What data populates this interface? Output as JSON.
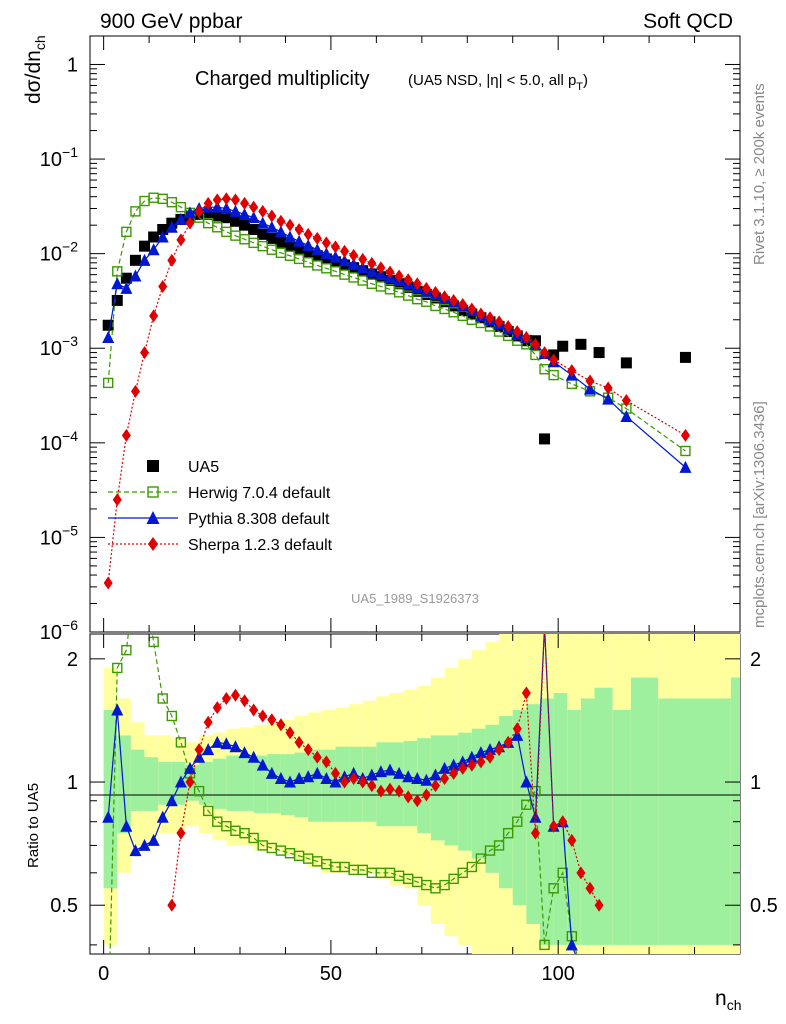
{
  "header": {
    "left": "900 GeV ppbar",
    "right": "Soft QCD"
  },
  "side_labels": {
    "rivet": "Rivet 3.1.10, ≥ 200k events",
    "mcplots": "mcplots.cern.ch [arXiv:1306.3436]"
  },
  "chart_data": {
    "type": "scatter",
    "title": "Charged multiplicity",
    "subtitle": "(UA5 NSD, |η| < 5.0, all p",
    "subtitle_sub": "T",
    "subtitle_end": ")",
    "watermark": "UA5_1989_S1926373",
    "ylabel": "dσ/dn",
    "ylabel_sub": "ch",
    "xlabel": "n",
    "xlabel_sub": "ch",
    "ratio_ylabel": "Ratio to UA5",
    "xlim": [
      -3,
      140
    ],
    "ylim": [
      1e-06,
      2
    ],
    "yscale": "log",
    "ratio_ylim": [
      0.38,
      2.3
    ],
    "x_ticks": [
      "0",
      "50",
      "100"
    ],
    "y_ticks": [
      {
        "mant": "10",
        "exp": "−6"
      },
      {
        "mant": "10",
        "exp": "−5"
      },
      {
        "mant": "10",
        "exp": "−4"
      },
      {
        "mant": "10",
        "exp": "−3"
      },
      {
        "mant": "10",
        "exp": "−2"
      },
      {
        "mant": "10",
        "exp": "−1"
      },
      {
        "mant": "1",
        "exp": ""
      }
    ],
    "ratio_ticks": [
      "0.5",
      "1",
      "2"
    ],
    "legend_position": "lower-left",
    "series": [
      {
        "name": "UA5",
        "color": "#000000",
        "marker": "square-filled",
        "x": [
          1,
          3,
          5,
          7,
          9,
          11,
          13,
          15,
          17,
          19,
          21,
          23,
          25,
          27,
          29,
          31,
          33,
          35,
          37,
          39,
          41,
          43,
          45,
          47,
          49,
          51,
          53,
          55,
          57,
          59,
          61,
          63,
          65,
          67,
          69,
          71,
          73,
          75,
          77,
          79,
          81,
          83,
          85,
          87,
          89,
          91,
          93,
          95,
          97,
          99,
          101,
          105,
          109,
          115,
          128
        ],
        "y": [
          0.00175,
          0.0032,
          0.0055,
          0.0085,
          0.012,
          0.015,
          0.018,
          0.021,
          0.023,
          0.025,
          0.026,
          0.026,
          0.025,
          0.024,
          0.022,
          0.02,
          0.018,
          0.016,
          0.0145,
          0.0132,
          0.012,
          0.011,
          0.0102,
          0.0095,
          0.0088,
          0.0082,
          0.0076,
          0.0071,
          0.0066,
          0.0061,
          0.0057,
          0.0052,
          0.0048,
          0.0044,
          0.004,
          0.0037,
          0.0034,
          0.0031,
          0.0028,
          0.0025,
          0.0023,
          0.0021,
          0.0019,
          0.0017,
          0.0015,
          0.00135,
          0.0012,
          0.0012,
          0.00011,
          0.00085,
          0.00105,
          0.0011,
          0.0009,
          0.0007,
          0.0008
        ]
      },
      {
        "name": "Herwig 7.0.4 default",
        "color": "#3c9a00",
        "marker": "square-open",
        "dash": "5,3",
        "x": [
          1,
          3,
          5,
          7,
          9,
          11,
          13,
          15,
          17,
          19,
          21,
          23,
          25,
          27,
          29,
          31,
          33,
          35,
          37,
          39,
          41,
          43,
          45,
          47,
          49,
          51,
          53,
          55,
          57,
          59,
          61,
          63,
          65,
          67,
          69,
          71,
          73,
          75,
          77,
          79,
          81,
          83,
          85,
          87,
          89,
          91,
          93,
          95,
          97,
          99,
          103,
          107,
          111,
          115,
          128
        ],
        "y": [
          0.00043,
          0.0065,
          0.017,
          0.028,
          0.036,
          0.039,
          0.038,
          0.035,
          0.031,
          0.027,
          0.024,
          0.021,
          0.019,
          0.017,
          0.0155,
          0.0142,
          0.013,
          0.012,
          0.011,
          0.0102,
          0.0095,
          0.0088,
          0.0081,
          0.0075,
          0.007,
          0.0065,
          0.006,
          0.0056,
          0.0052,
          0.0048,
          0.0045,
          0.0042,
          0.0039,
          0.0036,
          0.0033,
          0.0031,
          0.0028,
          0.0026,
          0.0024,
          0.0022,
          0.002,
          0.00185,
          0.0017,
          0.0015,
          0.00135,
          0.0012,
          0.0011,
          0.00085,
          0.0006,
          0.00052,
          0.00042,
          0.00035,
          0.0003,
          0.00023,
          8.2e-05
        ]
      },
      {
        "name": "Pythia 8.308 default",
        "color": "#0018d0",
        "marker": "triangle-filled",
        "dash": "",
        "x": [
          1,
          3,
          5,
          7,
          9,
          11,
          13,
          15,
          17,
          19,
          21,
          23,
          25,
          27,
          29,
          31,
          33,
          35,
          37,
          39,
          41,
          43,
          45,
          47,
          49,
          51,
          53,
          55,
          57,
          59,
          61,
          63,
          65,
          67,
          69,
          71,
          73,
          75,
          77,
          79,
          81,
          83,
          85,
          87,
          89,
          91,
          93,
          95,
          97,
          99,
          103,
          107,
          111,
          115,
          128
        ],
        "y": [
          0.0013,
          0.0048,
          0.0043,
          0.0058,
          0.0085,
          0.011,
          0.015,
          0.019,
          0.023,
          0.027,
          0.03,
          0.031,
          0.031,
          0.03,
          0.028,
          0.026,
          0.024,
          0.021,
          0.019,
          0.017,
          0.015,
          0.0135,
          0.0122,
          0.011,
          0.01,
          0.0092,
          0.0084,
          0.0077,
          0.0071,
          0.0065,
          0.006,
          0.0056,
          0.0052,
          0.0048,
          0.0044,
          0.004,
          0.0037,
          0.0034,
          0.0031,
          0.0028,
          0.0025,
          0.0022,
          0.002,
          0.0018,
          0.0016,
          0.0014,
          0.0013,
          0.0011,
          0.00088,
          0.00072,
          0.00052,
          0.00037,
          0.00029,
          0.00019,
          5.5e-05
        ]
      },
      {
        "name": "Sherpa 1.2.3 default",
        "color": "#e00000",
        "marker": "diamond-filled",
        "dash": "2,2",
        "x": [
          1,
          3,
          5,
          7,
          9,
          11,
          13,
          15,
          17,
          19,
          21,
          23,
          25,
          27,
          29,
          31,
          33,
          35,
          37,
          39,
          41,
          43,
          45,
          47,
          49,
          51,
          53,
          55,
          57,
          59,
          61,
          63,
          65,
          67,
          69,
          71,
          73,
          75,
          77,
          79,
          81,
          83,
          85,
          87,
          89,
          91,
          93,
          95,
          97,
          99,
          103,
          107,
          111,
          115,
          128
        ],
        "y": [
          3.3e-06,
          2.5e-05,
          0.00012,
          0.00035,
          0.0009,
          0.0022,
          0.0045,
          0.0085,
          0.014,
          0.021,
          0.028,
          0.034,
          0.037,
          0.038,
          0.037,
          0.034,
          0.031,
          0.028,
          0.025,
          0.022,
          0.02,
          0.018,
          0.016,
          0.0145,
          0.013,
          0.0118,
          0.0106,
          0.0096,
          0.0087,
          0.0079,
          0.0071,
          0.0064,
          0.0058,
          0.0053,
          0.0048,
          0.0043,
          0.0039,
          0.0035,
          0.0032,
          0.0029,
          0.0026,
          0.0023,
          0.0021,
          0.0019,
          0.0017,
          0.0015,
          0.0013,
          0.0011,
          0.0009,
          0.00075,
          0.00058,
          0.00045,
          0.00038,
          0.00028,
          0.00012
        ]
      }
    ],
    "ratio_series": [
      {
        "name": "Herwig 7.0.4 default",
        "x": [
          1,
          3,
          5,
          7,
          9,
          11,
          13,
          15,
          17,
          19,
          21,
          23,
          25,
          27,
          29,
          31,
          33,
          35,
          37,
          39,
          41,
          43,
          45,
          47,
          49,
          51,
          53,
          55,
          57,
          59,
          61,
          63,
          65,
          67,
          69,
          71,
          73,
          75,
          77,
          79,
          81,
          83,
          85,
          87,
          89,
          91,
          93,
          95,
          97,
          99,
          101,
          103,
          105
        ],
        "y": [
          0.25,
          1.9,
          2.1,
          3.2,
          3.0,
          2.2,
          1.6,
          1.45,
          1.25,
          1.05,
          0.95,
          0.85,
          0.8,
          0.78,
          0.76,
          0.75,
          0.73,
          0.7,
          0.69,
          0.68,
          0.67,
          0.66,
          0.65,
          0.64,
          0.63,
          0.62,
          0.62,
          0.61,
          0.61,
          0.6,
          0.6,
          0.6,
          0.59,
          0.58,
          0.57,
          0.56,
          0.55,
          0.56,
          0.58,
          0.6,
          0.62,
          0.65,
          0.68,
          0.7,
          0.75,
          0.8,
          0.88,
          0.95,
          0.4,
          0.55,
          0.6,
          0.42,
          0.35
        ]
      },
      {
        "name": "Pythia 8.308 default",
        "x": [
          1,
          3,
          5,
          7,
          9,
          11,
          13,
          15,
          17,
          19,
          21,
          23,
          25,
          27,
          29,
          31,
          33,
          35,
          37,
          39,
          41,
          43,
          45,
          47,
          49,
          51,
          53,
          55,
          57,
          59,
          61,
          63,
          65,
          67,
          69,
          71,
          73,
          75,
          77,
          79,
          81,
          83,
          85,
          87,
          89,
          91,
          93,
          95,
          97,
          99,
          101,
          103,
          105
        ],
        "y": [
          0.82,
          1.5,
          0.78,
          0.68,
          0.7,
          0.72,
          0.82,
          0.9,
          1.0,
          1.08,
          1.15,
          1.2,
          1.25,
          1.24,
          1.22,
          1.18,
          1.15,
          1.1,
          1.05,
          1.02,
          1.0,
          1.02,
          1.03,
          1.05,
          1.02,
          1.0,
          1.03,
          1.05,
          1.02,
          1.04,
          1.06,
          1.07,
          1.05,
          1.03,
          1.02,
          1.01,
          1.04,
          1.08,
          1.1,
          1.12,
          1.15,
          1.18,
          1.2,
          1.22,
          1.25,
          1.3,
          1.0,
          0.82,
          2.4,
          0.78,
          0.8,
          0.4,
          0.35
        ]
      },
      {
        "name": "Sherpa 1.2.3 default",
        "x": [
          15,
          17,
          19,
          21,
          23,
          25,
          27,
          29,
          31,
          33,
          35,
          37,
          39,
          41,
          43,
          45,
          47,
          49,
          51,
          53,
          55,
          57,
          59,
          61,
          63,
          65,
          67,
          69,
          71,
          73,
          75,
          77,
          79,
          81,
          83,
          85,
          87,
          89,
          91,
          93,
          95,
          97,
          99,
          101,
          103,
          105,
          107,
          109
        ],
        "y": [
          0.5,
          0.75,
          1.0,
          1.2,
          1.4,
          1.52,
          1.6,
          1.63,
          1.58,
          1.5,
          1.45,
          1.42,
          1.38,
          1.32,
          1.25,
          1.2,
          1.15,
          1.12,
          1.05,
          1.0,
          1.02,
          1.0,
          0.98,
          0.95,
          0.96,
          0.95,
          0.92,
          0.9,
          0.93,
          0.98,
          1.02,
          1.05,
          1.08,
          1.1,
          1.12,
          1.15,
          1.2,
          1.25,
          1.35,
          1.65,
          0.75,
          2.4,
          0.78,
          0.8,
          0.72,
          0.6,
          0.55,
          0.5
        ]
      }
    ],
    "ratio_bands": {
      "x_edges": [
        0,
        3,
        6,
        9,
        12,
        15,
        18,
        21,
        24,
        27,
        30,
        33,
        36,
        39,
        42,
        45,
        48,
        51,
        54,
        57,
        60,
        63,
        66,
        69,
        72,
        75,
        78,
        81,
        84,
        87,
        90,
        93,
        96,
        99,
        102,
        105,
        108,
        112,
        116,
        122,
        138
      ],
      "inner": [
        [
          0.55,
          1.5
        ],
        [
          0.75,
          1.3
        ],
        [
          0.85,
          1.2
        ],
        [
          0.85,
          1.15
        ],
        [
          0.88,
          1.12
        ],
        [
          0.88,
          1.12
        ],
        [
          0.9,
          1.1
        ],
        [
          0.88,
          1.12
        ],
        [
          0.86,
          1.14
        ],
        [
          0.85,
          1.16
        ],
        [
          0.85,
          1.16
        ],
        [
          0.84,
          1.16
        ],
        [
          0.84,
          1.17
        ],
        [
          0.83,
          1.17
        ],
        [
          0.82,
          1.18
        ],
        [
          0.8,
          1.2
        ],
        [
          0.8,
          1.2
        ],
        [
          0.8,
          1.22
        ],
        [
          0.8,
          1.22
        ],
        [
          0.8,
          1.22
        ],
        [
          0.78,
          1.25
        ],
        [
          0.78,
          1.25
        ],
        [
          0.78,
          1.26
        ],
        [
          0.75,
          1.28
        ],
        [
          0.72,
          1.3
        ],
        [
          0.7,
          1.3
        ],
        [
          0.68,
          1.32
        ],
        [
          0.65,
          1.35
        ],
        [
          0.6,
          1.38
        ],
        [
          0.55,
          1.45
        ],
        [
          0.5,
          1.5
        ],
        [
          0.45,
          1.55
        ],
        [
          0.4,
          1.6
        ],
        [
          0.4,
          1.65
        ],
        [
          0.4,
          1.5
        ],
        [
          0.4,
          1.6
        ],
        [
          0.4,
          1.7
        ],
        [
          0.4,
          1.5
        ],
        [
          0.4,
          1.8
        ],
        [
          0.4,
          1.6
        ],
        [
          0.4,
          1.8
        ]
      ],
      "outer": [
        [
          0.4,
          1.9
        ],
        [
          0.6,
          1.6
        ],
        [
          0.7,
          1.4
        ],
        [
          0.72,
          1.3
        ],
        [
          0.75,
          1.3
        ],
        [
          0.75,
          1.28
        ],
        [
          0.78,
          1.25
        ],
        [
          0.75,
          1.3
        ],
        [
          0.72,
          1.32
        ],
        [
          0.7,
          1.35
        ],
        [
          0.7,
          1.36
        ],
        [
          0.68,
          1.38
        ],
        [
          0.68,
          1.4
        ],
        [
          0.66,
          1.42
        ],
        [
          0.64,
          1.45
        ],
        [
          0.62,
          1.48
        ],
        [
          0.6,
          1.5
        ],
        [
          0.6,
          1.52
        ],
        [
          0.6,
          1.55
        ],
        [
          0.6,
          1.58
        ],
        [
          0.58,
          1.62
        ],
        [
          0.56,
          1.65
        ],
        [
          0.55,
          1.68
        ],
        [
          0.5,
          1.72
        ],
        [
          0.45,
          1.8
        ],
        [
          0.42,
          1.9
        ],
        [
          0.4,
          2.0
        ],
        [
          0.38,
          2.1
        ],
        [
          0.38,
          2.2
        ],
        [
          0.38,
          2.3
        ],
        [
          0.38,
          2.3
        ],
        [
          0.38,
          2.3
        ],
        [
          0.38,
          2.3
        ],
        [
          0.38,
          2.3
        ],
        [
          0.38,
          2.3
        ],
        [
          0.38,
          2.3
        ],
        [
          0.38,
          2.3
        ],
        [
          0.38,
          2.3
        ],
        [
          0.38,
          2.3
        ],
        [
          0.38,
          2.3
        ],
        [
          0.38,
          2.3
        ]
      ]
    }
  }
}
